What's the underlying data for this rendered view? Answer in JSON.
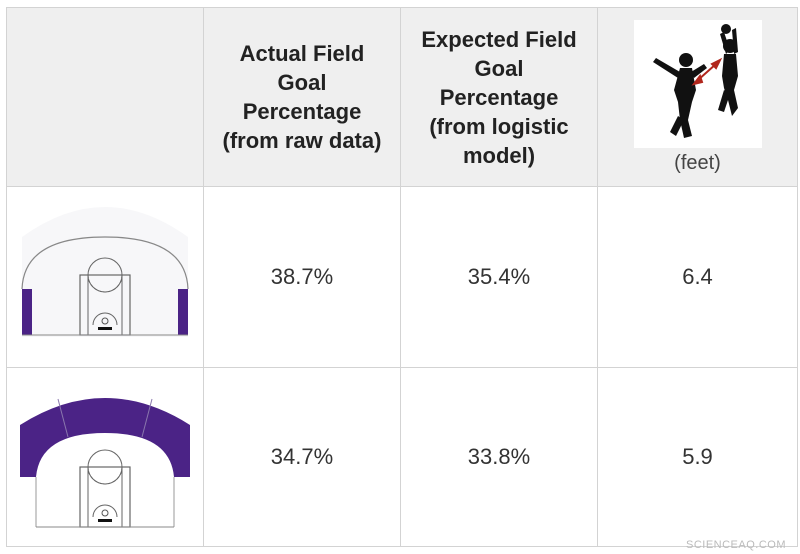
{
  "header": {
    "actual": "Actual Field\nGoal\nPercentage\n(from raw data)",
    "expected": "Expected Field\nGoal\nPercentage\n(from logistic\nmodel)",
    "distance_unit": "(feet)",
    "distance_icon": "defender-contesting-shooter-icon"
  },
  "rows": [
    {
      "zone": "corner-three-zones",
      "actual": "38.7%",
      "expected": "35.4%",
      "distance": "6.4"
    },
    {
      "zone": "above-break-three-zones",
      "actual": "34.7%",
      "expected": "33.8%",
      "distance": "5.9"
    }
  ],
  "colors": {
    "zone_fill": "#4b2386",
    "header_bg": "#efefef",
    "grid_line": "#d3d3d3",
    "arrow": "#b1261c"
  },
  "watermark": "SCIENCEAQ.COM"
}
